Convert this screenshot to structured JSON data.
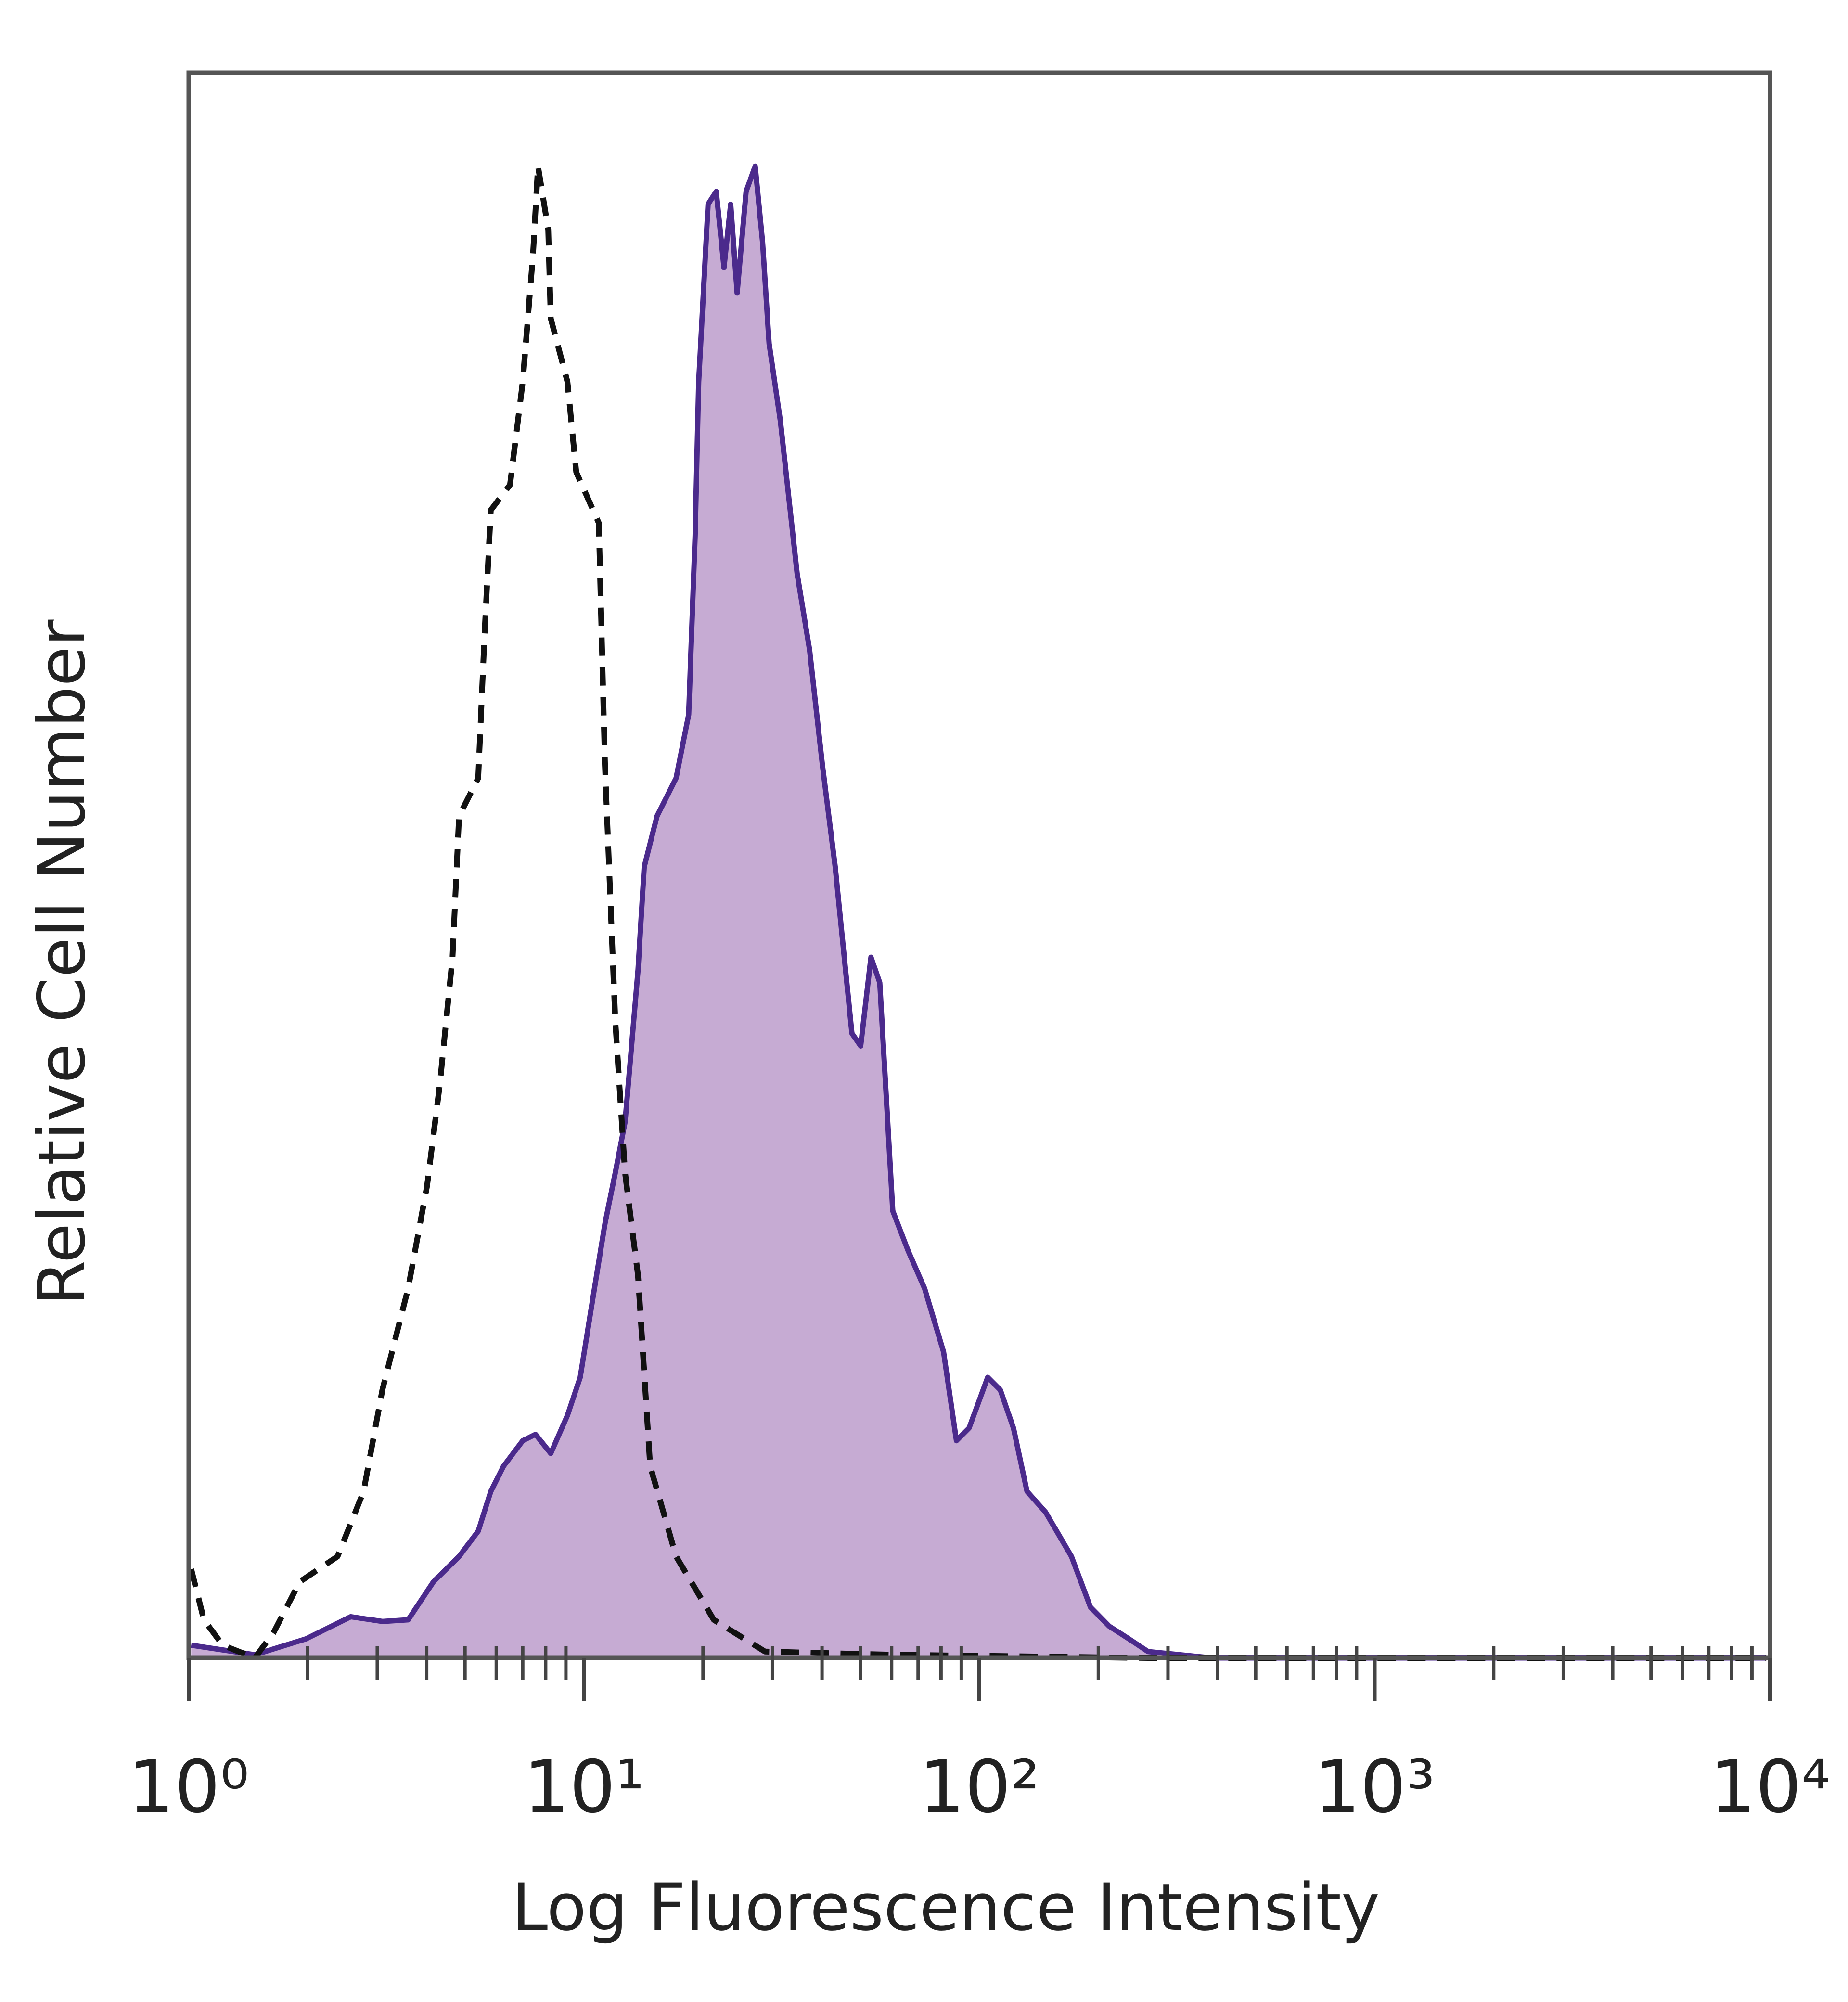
{
  "chart_data": {
    "type": "histogram-overlay",
    "xlabel": "Log Fluorescence Intensity",
    "ylabel": "Relative Cell Number",
    "xscale": "log",
    "xlim": [
      1,
      10000
    ],
    "ylim": [
      0,
      100
    ],
    "xticks": [
      {
        "value": 1,
        "label": "10⁰"
      },
      {
        "value": 10,
        "label": "10¹"
      },
      {
        "value": 100,
        "label": "10²"
      },
      {
        "value": 1000,
        "label": "10³"
      },
      {
        "value": 10000,
        "label": "10⁴"
      }
    ],
    "xminorticks": [
      2,
      3,
      4,
      5,
      6,
      7,
      8,
      9,
      20,
      30,
      40,
      50,
      60,
      70,
      80,
      90,
      200,
      300,
      400,
      500,
      600,
      700,
      800,
      900,
      2000,
      3000,
      4000,
      5000,
      6000,
      7000,
      8000,
      9000
    ],
    "series": [
      {
        "color": "#4b2a8c",
        "fill": "#c6abd3",
        "dashed": false,
        "x": [
          1.015,
          1.47,
          1.98,
          2.57,
          3.09,
          3.59,
          4.16,
          4.83,
          5.4,
          5.81,
          6.26,
          7.0,
          7.54,
          8.24,
          9.08,
          9.78,
          10.5,
          11.3,
          12.0,
          12.7,
          13.7,
          14.2,
          15.3,
          17.1,
          18.4,
          19.1,
          19.5,
          20.6,
          21.6,
          22.6,
          23.5,
          24.4,
          25.7,
          27.1,
          28.3,
          29.4,
          31.4,
          34.6,
          37.2,
          40.1,
          43.2,
          47.6,
          50.1,
          53.2,
          56.0,
          60.4,
          66.0,
          72.7,
          81.2,
          87.5,
          94.2,
          105,
          113,
          122,
          132,
          147,
          171,
          191,
          213,
          239,
          267,
          387,
          9780
        ],
        "values": [
          0.8,
          0.2,
          1.2,
          2.6,
          2.3,
          2.4,
          4.8,
          6.4,
          8.0,
          10.5,
          12.1,
          13.7,
          14.1,
          12.9,
          15.3,
          17.7,
          22.5,
          27.4,
          30.6,
          33.8,
          43.4,
          49.9,
          53.1,
          55.5,
          59.5,
          70.8,
          80.5,
          91.7,
          92.5,
          87.7,
          91.7,
          86.1,
          92.5,
          94.1,
          89.3,
          82.9,
          78.0,
          68.4,
          63.6,
          56.3,
          49.9,
          39.4,
          38.6,
          44.2,
          42.6,
          28.2,
          25.7,
          23.3,
          19.3,
          13.7,
          14.5,
          17.7,
          16.9,
          14.5,
          10.5,
          9.2,
          6.4,
          3.2,
          2.0,
          1.2,
          0.4,
          0,
          0
        ]
      },
      {
        "color": "#111111",
        "fill": null,
        "dashed": true,
        "x": [
          1.015,
          1.093,
          1.22,
          1.47,
          1.64,
          1.91,
          2.38,
          2.77,
          3.09,
          3.59,
          4.01,
          4.32,
          4.65,
          4.83,
          5.4,
          5.6,
          5.81,
          6.5,
          7.0,
          7.43,
          7.65,
          8.12,
          8.24,
          9.08,
          9.56,
          10.9,
          11.3,
          12.0,
          12.7,
          13.7,
          14.7,
          17.1,
          21.3,
          28.7,
          60.4,
          267,
          9780
        ],
        "values": [
          5.6,
          2.4,
          0.8,
          0,
          1.6,
          4.8,
          6.4,
          10.5,
          16.9,
          23.3,
          29.8,
          36.2,
          44.2,
          53.1,
          55.5,
          64.4,
          72.4,
          74.0,
          80.5,
          88.5,
          94.1,
          90.1,
          84.5,
          80.5,
          74.8,
          71.6,
          56.3,
          40.2,
          30.6,
          24.1,
          12.1,
          6.4,
          2.4,
          0.4,
          0.2,
          0,
          0
        ]
      }
    ]
  }
}
